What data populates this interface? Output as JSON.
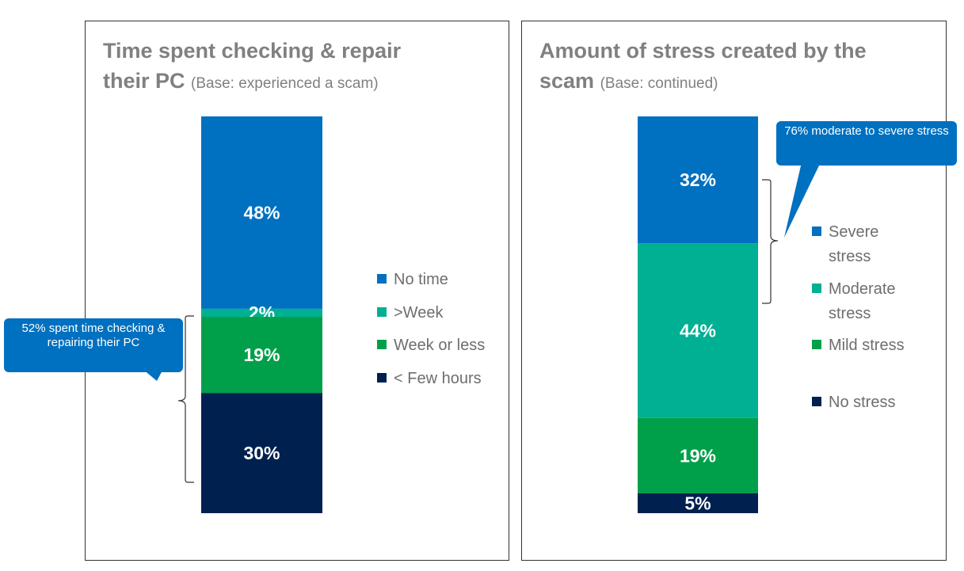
{
  "panels": [
    {
      "title": "Time spent checking & repair their PC",
      "base": "(Base: experienced a scam)"
    },
    {
      "title": "Amount of stress created by the scam",
      "base": "(Base: continued)"
    }
  ],
  "callouts": {
    "left": "52% spent time checking & repairing their PC",
    "right": "76% moderate to severe stress"
  },
  "chart_data": [
    {
      "type": "bar",
      "stacked": true,
      "title": "Time spent checking & repair their PC",
      "subtitle": "(Base: experienced a scam)",
      "series": [
        {
          "name": "No time",
          "value": 48,
          "label": "48%",
          "color": "#0070c0"
        },
        {
          "name": ">Week",
          "value": 2,
          "label": "2%",
          "color": "#00b092"
        },
        {
          "name": "Week or less",
          "value": 19,
          "label": "19%",
          "color": "#00a04a"
        },
        {
          "name": "< Few hours",
          "value": 30,
          "label": "30%",
          "color": "#002050"
        }
      ],
      "legend": [
        "No time",
        ">Week",
        "Week or less",
        "< Few hours"
      ],
      "legend_position": "right"
    },
    {
      "type": "bar",
      "stacked": true,
      "title": "Amount of stress created by the scam",
      "subtitle": "(Base: continued)",
      "series": [
        {
          "name": "Severe stress",
          "value": 32,
          "label": "32%",
          "color": "#0070c0"
        },
        {
          "name": "Moderate stress",
          "value": 44,
          "label": "44%",
          "color": "#00b092"
        },
        {
          "name": "Mild stress",
          "value": 19,
          "label": "19%",
          "color": "#00a04a"
        },
        {
          "name": "No stress",
          "value": 5,
          "label": "5%",
          "color": "#002050"
        }
      ],
      "legend": [
        "Severe stress",
        "Moderate stress",
        "Mild stress",
        "No stress"
      ],
      "legend_position": "right"
    }
  ]
}
